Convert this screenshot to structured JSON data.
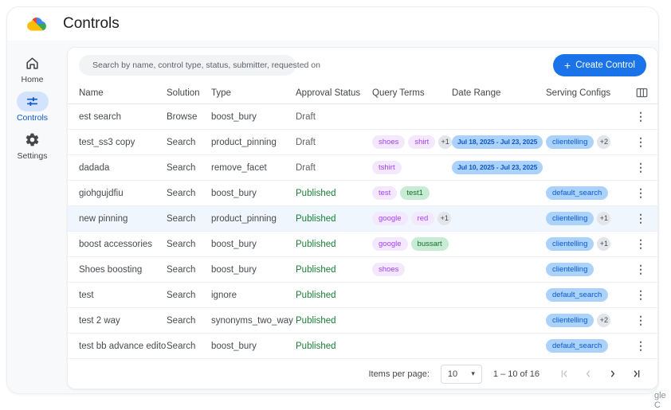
{
  "app": {
    "title": "Controls",
    "watermark": "gle C"
  },
  "colors": {
    "accent_blue": "#1a73e8",
    "active_pill": "#d3e3fd",
    "published_green": "#188038",
    "chip_purple_bg": "#f3e8fd",
    "chip_purple_text": "#a142f4",
    "chip_green_bg": "#c8ebd3",
    "chip_green_text": "#146c2e",
    "chip_blue_bg": "#abd2fa",
    "chip_blue_text": "#0b57d0",
    "highlight_row": "#f0f6fe"
  },
  "icons": {
    "logo": "google-cloud-logo",
    "search_filter": "filter-list-icon",
    "columns": "view-columns-icon",
    "kebab_glyph": "⋮",
    "caret_glyph": "▾",
    "plus_glyph": "+"
  },
  "sidebar": {
    "items": [
      {
        "label": "Home",
        "icon": "home-icon",
        "active": false
      },
      {
        "label": "Controls",
        "icon": "tune-icon",
        "active": true
      },
      {
        "label": "Settings",
        "icon": "gear-icon",
        "active": false
      }
    ]
  },
  "toolbar": {
    "search_placeholder": "Search by name, control type, status, submitter, requested on",
    "create_label": "Create Control"
  },
  "table": {
    "columns": [
      "Name",
      "Solution",
      "Type",
      "Approval Status",
      "Query Terms",
      "Date Range",
      "Serving Configs"
    ],
    "rows": [
      {
        "name": "est search",
        "solution": "Browse",
        "type": "boost_bury",
        "status": "Draft",
        "status_style": "draft",
        "query": [],
        "date": "",
        "serving": [],
        "highlight": false
      },
      {
        "name": "test_ss3 copy",
        "solution": "Search",
        "type": "product_pinning",
        "status": "Draft",
        "status_style": "draft",
        "query": [
          {
            "label": "shoes",
            "style": "purple"
          },
          {
            "label": "shirt",
            "style": "purple"
          },
          {
            "label": "+1",
            "style": "count"
          }
        ],
        "date": "Jul 18, 2025 - Jul 23, 2025",
        "serving": [
          {
            "label": "clientelling",
            "style": "blue"
          },
          {
            "label": "+2",
            "style": "count"
          }
        ],
        "highlight": false
      },
      {
        "name": "dadada",
        "solution": "Search",
        "type": "remove_facet",
        "status": "Draft",
        "status_style": "draft",
        "query": [
          {
            "label": "tshirt",
            "style": "purple"
          }
        ],
        "date": "Jul 10, 2025 - Jul 23, 2025",
        "serving": [],
        "highlight": false
      },
      {
        "name": "giohgujdfiu",
        "solution": "Search",
        "type": "boost_bury",
        "status": "Published",
        "status_style": "published",
        "query": [
          {
            "label": "test",
            "style": "purple"
          },
          {
            "label": "test1",
            "style": "green"
          }
        ],
        "date": "",
        "serving": [
          {
            "label": "default_search",
            "style": "blue"
          }
        ],
        "highlight": false
      },
      {
        "name": "new pinning",
        "solution": "Search",
        "type": "product_pinning",
        "status": "Published",
        "status_style": "published",
        "query": [
          {
            "label": "google",
            "style": "purple"
          },
          {
            "label": "red",
            "style": "purple"
          },
          {
            "label": "+1",
            "style": "count"
          }
        ],
        "date": "",
        "serving": [
          {
            "label": "clientelling",
            "style": "blue"
          },
          {
            "label": "+1",
            "style": "count"
          }
        ],
        "highlight": true
      },
      {
        "name": "boost accessories",
        "solution": "Search",
        "type": "boost_bury",
        "status": "Published",
        "status_style": "published",
        "query": [
          {
            "label": "google",
            "style": "purple"
          },
          {
            "label": "bussart",
            "style": "green"
          }
        ],
        "date": "",
        "serving": [
          {
            "label": "clientelling",
            "style": "blue"
          },
          {
            "label": "+1",
            "style": "count"
          }
        ],
        "highlight": false
      },
      {
        "name": "Shoes boosting",
        "solution": "Search",
        "type": "boost_bury",
        "status": "Published",
        "status_style": "published",
        "query": [
          {
            "label": "shoes",
            "style": "purple"
          }
        ],
        "date": "",
        "serving": [
          {
            "label": "clientelling",
            "style": "blue"
          }
        ],
        "highlight": false
      },
      {
        "name": "test",
        "solution": "Search",
        "type": "ignore",
        "status": "Published",
        "status_style": "published",
        "query": [],
        "date": "",
        "serving": [
          {
            "label": "default_search",
            "style": "blue"
          }
        ],
        "highlight": false
      },
      {
        "name": "test 2 way",
        "solution": "Search",
        "type": "synonyms_two_way",
        "status": "Published",
        "status_style": "published",
        "query": [],
        "date": "",
        "serving": [
          {
            "label": "clientelling",
            "style": "blue"
          },
          {
            "label": "+2",
            "style": "count"
          }
        ],
        "highlight": false
      },
      {
        "name": "test bb advance editor",
        "solution": "Search",
        "type": "boost_bury",
        "status": "Published",
        "status_style": "published",
        "query": [],
        "date": "",
        "serving": [
          {
            "label": "default_search",
            "style": "blue"
          }
        ],
        "highlight": false
      }
    ]
  },
  "pagination": {
    "items_per_page_label": "Items per page:",
    "page_size": "10",
    "range": "1 – 10 of 16"
  }
}
